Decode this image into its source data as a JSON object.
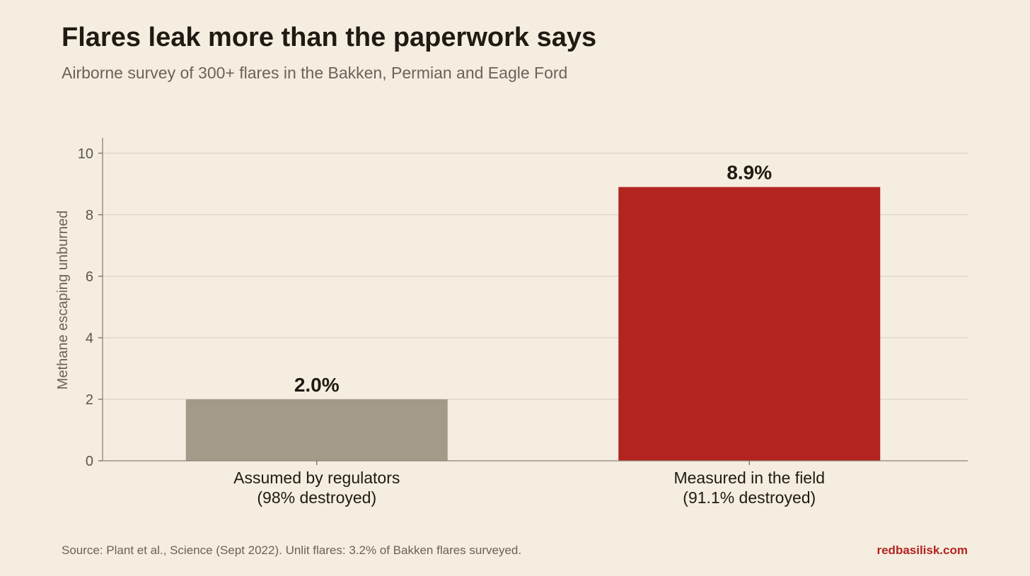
{
  "chart_data": {
    "type": "bar",
    "title": "Flares leak more than the paperwork says",
    "subtitle": "Airborne survey of 300+ flares in the Bakken, Permian and Eagle Ford",
    "ylabel": "Methane escaping unburned",
    "xlabel": "",
    "ylim": [
      0,
      10.5
    ],
    "yticks": [
      0,
      2,
      4,
      6,
      8,
      10
    ],
    "grid": true,
    "categories": [
      [
        "Assumed by regulators",
        "(98% destroyed)"
      ],
      [
        "Measured in the field",
        "(91.1% destroyed)"
      ]
    ],
    "values": [
      2.0,
      8.9
    ],
    "data_labels": [
      "2.0%",
      "8.9%"
    ],
    "colors": [
      "#a39a8a",
      "#b22420"
    ]
  },
  "footer": {
    "source": "Source: Plant et al., Science (Sept 2022). Unlit flares: 3.2% of Bakken flares surveyed.",
    "brand": "redbasilisk.com"
  }
}
